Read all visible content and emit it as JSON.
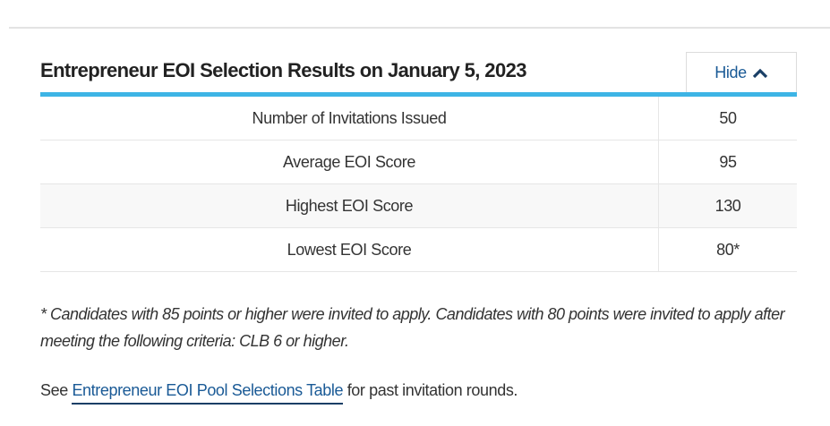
{
  "section": {
    "title": "Entrepreneur EOI Selection Results on January 5, 2023",
    "hide_label": "Hide",
    "hide_icon": "chevron-up-icon",
    "accent_color": "#3db4e5",
    "link_color": "#1a5a96"
  },
  "table": {
    "rows": [
      {
        "label": "Number of Invitations Issued",
        "value": "50"
      },
      {
        "label": "Average EOI Score",
        "value": "95"
      },
      {
        "label": "Highest EOI Score",
        "value": "130"
      },
      {
        "label": "Lowest EOI Score",
        "value": "80*"
      }
    ]
  },
  "footnote": "* Candidates with 85 points or higher were invited to apply. Candidates with 80 points were invited to apply after meeting the following criteria: CLB 6 or higher.",
  "see_line": {
    "prefix": "See ",
    "link": "Entrepreneur EOI Pool Selections Table",
    "suffix": " for past invitation rounds."
  }
}
